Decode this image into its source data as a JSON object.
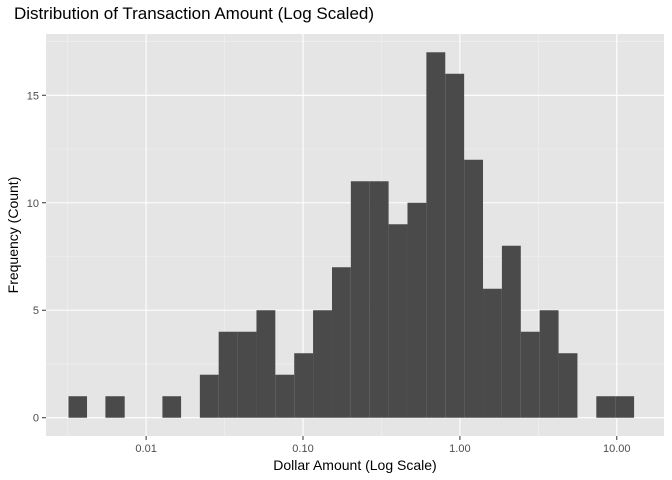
{
  "chart_data": {
    "type": "histogram",
    "title": "Distribution of Transaction Amount (Log Scaled)",
    "xlabel": "Dollar Amount (Log Scale)",
    "ylabel": "Frequency (Count)",
    "x_scale": "log10",
    "xlim": [
      0.0023,
      20
    ],
    "ylim": [
      -0.85,
      17.85
    ],
    "x_ticks": [
      {
        "value": 0.01,
        "label": "0.01"
      },
      {
        "value": 0.1,
        "label": "0.10"
      },
      {
        "value": 1,
        "label": "1.00"
      },
      {
        "value": 10,
        "label": "10.00"
      }
    ],
    "y_ticks": [
      {
        "value": 0,
        "label": "0"
      },
      {
        "value": 5,
        "label": "5"
      },
      {
        "value": 10,
        "label": "10"
      },
      {
        "value": 15,
        "label": "15"
      }
    ],
    "grid": true,
    "bar_color": "#4a4a4a",
    "panel_color": "#e5e5e5",
    "bins": [
      {
        "x0": 0.0032,
        "x1": 0.0042,
        "count": 1
      },
      {
        "x0": 0.0042,
        "x1": 0.0055,
        "count": 0
      },
      {
        "x0": 0.0055,
        "x1": 0.0073,
        "count": 1
      },
      {
        "x0": 0.0073,
        "x1": 0.0096,
        "count": 0
      },
      {
        "x0": 0.0096,
        "x1": 0.0127,
        "count": 0
      },
      {
        "x0": 0.0127,
        "x1": 0.0167,
        "count": 1
      },
      {
        "x0": 0.0167,
        "x1": 0.022,
        "count": 0
      },
      {
        "x0": 0.022,
        "x1": 0.029,
        "count": 2
      },
      {
        "x0": 0.029,
        "x1": 0.0383,
        "count": 4
      },
      {
        "x0": 0.0383,
        "x1": 0.0505,
        "count": 4
      },
      {
        "x0": 0.0505,
        "x1": 0.0666,
        "count": 5
      },
      {
        "x0": 0.0666,
        "x1": 0.0879,
        "count": 2
      },
      {
        "x0": 0.0879,
        "x1": 0.1159,
        "count": 3
      },
      {
        "x0": 0.1159,
        "x1": 0.153,
        "count": 5
      },
      {
        "x0": 0.153,
        "x1": 0.2018,
        "count": 7
      },
      {
        "x0": 0.2018,
        "x1": 0.2662,
        "count": 11
      },
      {
        "x0": 0.2662,
        "x1": 0.3512,
        "count": 11
      },
      {
        "x0": 0.3512,
        "x1": 0.4634,
        "count": 9
      },
      {
        "x0": 0.4634,
        "x1": 0.6114,
        "count": 10
      },
      {
        "x0": 0.6114,
        "x1": 0.8067,
        "count": 17
      },
      {
        "x0": 0.8067,
        "x1": 1.0643,
        "count": 16
      },
      {
        "x0": 1.0643,
        "x1": 1.4042,
        "count": 12
      },
      {
        "x0": 1.4042,
        "x1": 1.8527,
        "count": 6
      },
      {
        "x0": 1.8527,
        "x1": 2.4444,
        "count": 8
      },
      {
        "x0": 2.4444,
        "x1": 3.2251,
        "count": 4
      },
      {
        "x0": 3.2251,
        "x1": 4.2552,
        "count": 5
      },
      {
        "x0": 4.2552,
        "x1": 5.6142,
        "count": 3
      },
      {
        "x0": 5.6142,
        "x1": 7.4073,
        "count": 0
      },
      {
        "x0": 7.4073,
        "x1": 9.7732,
        "count": 1
      },
      {
        "x0": 9.7732,
        "x1": 12.894,
        "count": 1
      }
    ]
  }
}
